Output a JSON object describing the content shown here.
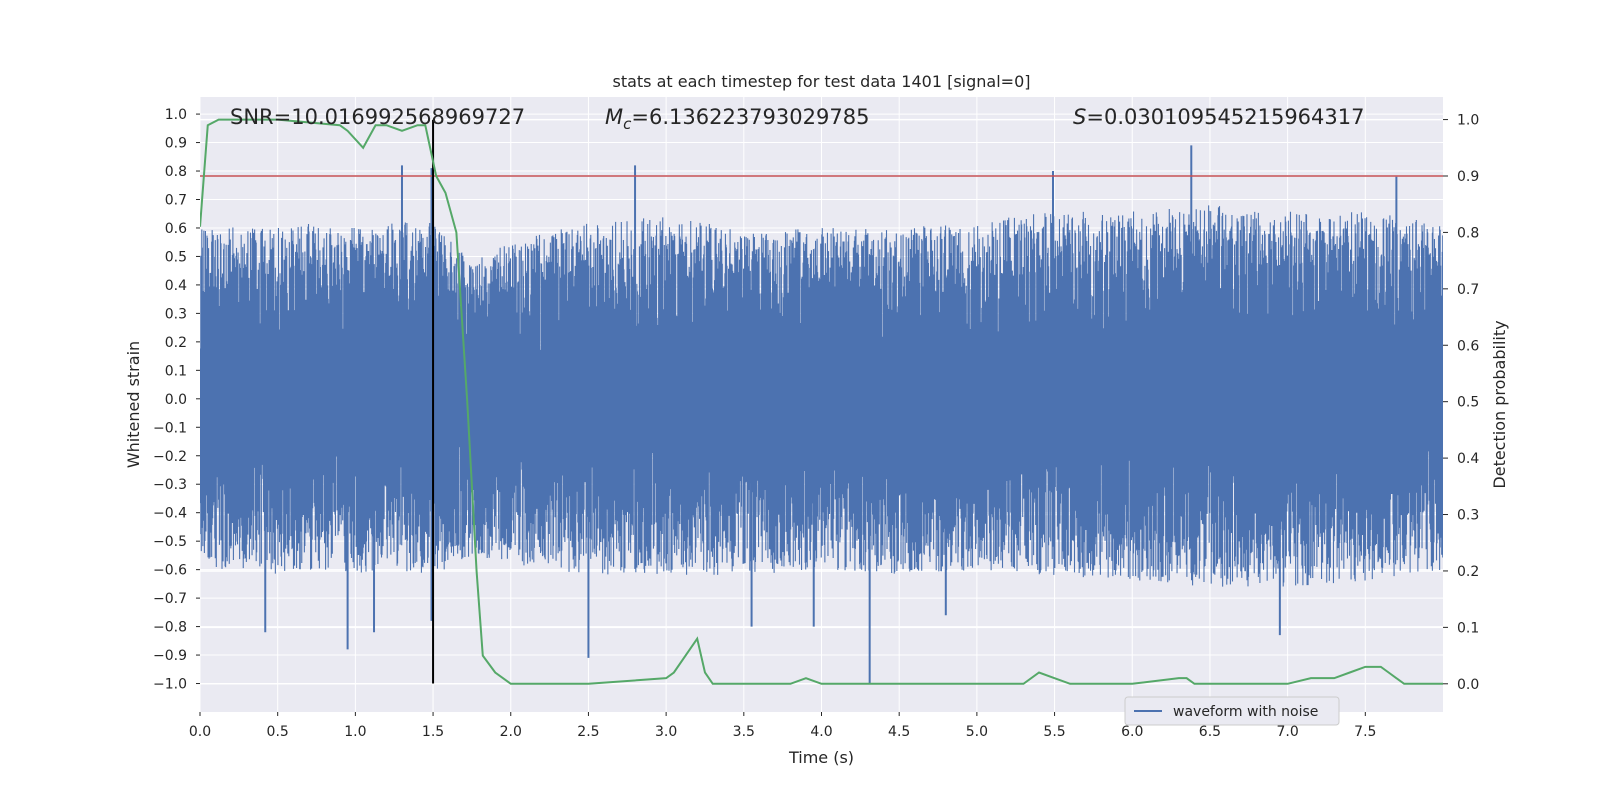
{
  "chart_data": {
    "type": "line",
    "title": "stats at each timestep for test data 1401 [signal=0]",
    "xlabel": "Time (s)",
    "ylabel_left": "Whitened strain",
    "ylabel_right": "Detection probability",
    "xlim": [
      0.0,
      8.0
    ],
    "ylim_left": [
      -1.1,
      1.06
    ],
    "ylim_right": [
      -0.05,
      1.04
    ],
    "x_ticks": [
      0.0,
      0.5,
      1.0,
      1.5,
      2.0,
      2.5,
      3.0,
      3.5,
      4.0,
      4.5,
      5.0,
      5.5,
      6.0,
      6.5,
      7.0,
      7.5
    ],
    "x_tick_labels": [
      "0.0",
      "0.5",
      "1.0",
      "1.5",
      "2.0",
      "2.5",
      "3.0",
      "3.5",
      "4.0",
      "4.5",
      "5.0",
      "5.5",
      "6.0",
      "6.5",
      "7.0",
      "7.5"
    ],
    "y_left_ticks": [
      1.0,
      0.9,
      0.8,
      0.7,
      0.6,
      0.5,
      0.4,
      0.3,
      0.2,
      0.1,
      0.0,
      -0.1,
      -0.2,
      -0.3,
      -0.4,
      -0.5,
      -0.6,
      -0.7,
      -0.8,
      -0.9,
      -1.0
    ],
    "y_left_tick_labels": [
      "1.0",
      "0.9",
      "0.8",
      "0.7",
      "0.6",
      "0.5",
      "0.4",
      "0.3",
      "0.2",
      "0.1",
      "0.0",
      "−0.1",
      "−0.2",
      "−0.3",
      "−0.4",
      "−0.5",
      "−0.6",
      "−0.7",
      "−0.8",
      "−0.9",
      "−1.0"
    ],
    "y_right_ticks": [
      1.0,
      0.9,
      0.8,
      0.7,
      0.6,
      0.5,
      0.4,
      0.3,
      0.2,
      0.1,
      0.0
    ],
    "y_right_tick_labels": [
      "1.0",
      "0.9",
      "0.8",
      "0.7",
      "0.6",
      "0.5",
      "0.4",
      "0.3",
      "0.2",
      "0.1",
      "0.0"
    ],
    "grid": true,
    "series": [
      {
        "name": "waveform with noise",
        "axis": "left",
        "color": "#4c72b0",
        "style": "dense noise band",
        "envelope": {
          "x": [
            0.0,
            0.25,
            0.5,
            0.75,
            1.0,
            1.25,
            1.5,
            1.75,
            2.0,
            2.5,
            3.0,
            3.5,
            4.0,
            4.5,
            5.0,
            5.5,
            6.0,
            6.5,
            7.0,
            7.5,
            8.0
          ],
          "upper": [
            0.62,
            0.6,
            0.6,
            0.62,
            0.6,
            0.62,
            0.62,
            0.48,
            0.55,
            0.62,
            0.64,
            0.6,
            0.6,
            0.6,
            0.62,
            0.66,
            0.66,
            0.68,
            0.66,
            0.66,
            0.62
          ],
          "lower": [
            -0.6,
            -0.6,
            -0.62,
            -0.6,
            -0.62,
            -0.6,
            -0.62,
            -0.55,
            -0.58,
            -0.62,
            -0.62,
            -0.62,
            -0.6,
            -0.62,
            -0.6,
            -0.62,
            -0.64,
            -0.66,
            -0.66,
            -0.64,
            -0.6
          ]
        },
        "spikes": [
          {
            "x": 0.42,
            "y": -0.82
          },
          {
            "x": 0.95,
            "y": -0.88
          },
          {
            "x": 1.12,
            "y": -0.82
          },
          {
            "x": 1.3,
            "y": 0.82
          },
          {
            "x": 1.49,
            "y": 0.81
          },
          {
            "x": 1.49,
            "y": -0.78
          },
          {
            "x": 2.5,
            "y": -0.91
          },
          {
            "x": 2.8,
            "y": 0.82
          },
          {
            "x": 3.55,
            "y": -0.8
          },
          {
            "x": 3.95,
            "y": -0.8
          },
          {
            "x": 4.31,
            "y": -1.0
          },
          {
            "x": 4.8,
            "y": -0.76
          },
          {
            "x": 5.49,
            "y": 0.8
          },
          {
            "x": 6.38,
            "y": 0.89
          },
          {
            "x": 6.95,
            "y": -0.83
          },
          {
            "x": 7.7,
            "y": 0.78
          }
        ]
      },
      {
        "name": "detection probability",
        "axis": "right",
        "color": "#55a868",
        "x": [
          0.0,
          0.05,
          0.12,
          0.5,
          0.9,
          0.95,
          1.05,
          1.13,
          1.2,
          1.3,
          1.4,
          1.45,
          1.52,
          1.58,
          1.65,
          1.72,
          1.78,
          1.82,
          1.9,
          2.0,
          2.5,
          3.0,
          3.05,
          3.15,
          3.2,
          3.25,
          3.3,
          3.4,
          3.5,
          3.8,
          3.9,
          4.0,
          4.1,
          4.5,
          5.0,
          5.3,
          5.4,
          5.5,
          5.6,
          5.8,
          6.0,
          6.3,
          6.35,
          6.4,
          6.5,
          6.6,
          6.8,
          7.0,
          7.15,
          7.3,
          7.4,
          7.5,
          7.55,
          7.6,
          7.65,
          7.7,
          7.75,
          8.0
        ],
        "y": [
          0.81,
          0.99,
          1.0,
          1.0,
          0.99,
          0.98,
          0.95,
          0.99,
          0.99,
          0.98,
          0.99,
          0.99,
          0.9,
          0.87,
          0.8,
          0.5,
          0.2,
          0.05,
          0.02,
          0.0,
          0.0,
          0.01,
          0.02,
          0.06,
          0.08,
          0.02,
          0.0,
          0.0,
          0.0,
          0.0,
          0.01,
          0.0,
          0.0,
          0.0,
          0.0,
          0.0,
          0.02,
          0.01,
          0.0,
          0.0,
          0.0,
          0.01,
          0.01,
          0.0,
          0.0,
          0.0,
          0.0,
          0.0,
          0.01,
          0.01,
          0.02,
          0.03,
          0.03,
          0.03,
          0.02,
          0.01,
          0.0,
          0.0
        ]
      }
    ],
    "reference_lines": [
      {
        "name": "threshold",
        "orientation": "horizontal",
        "axis": "right",
        "value": 0.9,
        "color": "#c44e52"
      },
      {
        "name": "event-time",
        "orientation": "vertical",
        "x": 1.5,
        "y_range_left": [
          -1.0,
          0.98
        ],
        "color": "#000000"
      }
    ],
    "annotations": {
      "snr": {
        "label": "SNR",
        "value": "10.016992568969727"
      },
      "mc": {
        "symbol": "M",
        "subscript": "c",
        "value": "6.136223793029785"
      },
      "s": {
        "symbol": "S",
        "value": "0.030109545215964317"
      }
    },
    "legend": {
      "position": "bottom-right",
      "entries": [
        {
          "label": "waveform with noise",
          "color": "#4c72b0"
        }
      ]
    },
    "style": {
      "plot_background": "#eaeaf2",
      "grid_color": "#ffffff"
    }
  }
}
